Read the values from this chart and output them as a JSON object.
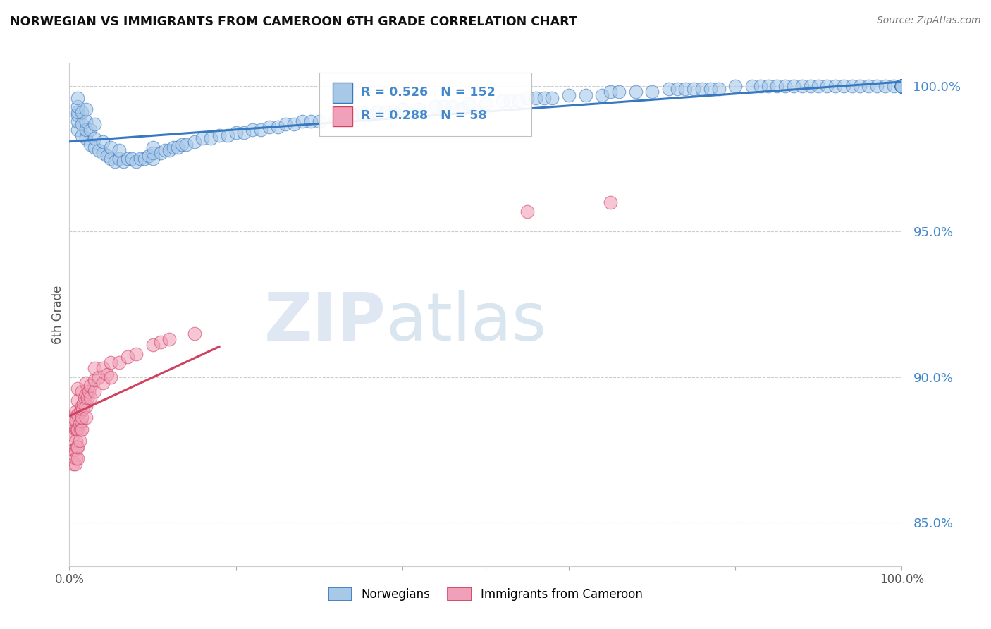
{
  "title": "NORWEGIAN VS IMMIGRANTS FROM CAMEROON 6TH GRADE CORRELATION CHART",
  "source": "Source: ZipAtlas.com",
  "ylabel": "6th Grade",
  "xlim": [
    0.0,
    1.0
  ],
  "ylim": [
    0.835,
    1.008
  ],
  "yticks": [
    0.85,
    0.9,
    0.95,
    1.0
  ],
  "ytick_labels": [
    "85.0%",
    "90.0%",
    "95.0%",
    "100.0%"
  ],
  "legend_norwegians": "Norwegians",
  "legend_immigrants": "Immigrants from Cameroon",
  "r_norwegian": 0.526,
  "n_norwegian": 152,
  "r_immigrant": 0.288,
  "n_immigrant": 58,
  "color_norwegian": "#A8C8E8",
  "color_immigrant": "#F0A0B8",
  "trendline_norwegian": "#3878C0",
  "trendline_immigrant": "#D04060",
  "watermark_zip": "ZIP",
  "watermark_atlas": "atlas",
  "background_color": "#FFFFFF",
  "grid_color": "#CCCCCC",
  "title_color": "#111111",
  "ytick_color": "#4488CC",
  "norwegians_x": [
    0.01,
    0.01,
    0.01,
    0.01,
    0.01,
    0.01,
    0.015,
    0.015,
    0.015,
    0.02,
    0.02,
    0.02,
    0.02,
    0.025,
    0.025,
    0.03,
    0.03,
    0.03,
    0.035,
    0.04,
    0.04,
    0.045,
    0.05,
    0.05,
    0.055,
    0.06,
    0.06,
    0.065,
    0.07,
    0.075,
    0.08,
    0.085,
    0.09,
    0.095,
    0.1,
    0.1,
    0.1,
    0.11,
    0.115,
    0.12,
    0.125,
    0.13,
    0.135,
    0.14,
    0.15,
    0.16,
    0.17,
    0.18,
    0.19,
    0.2,
    0.21,
    0.22,
    0.23,
    0.24,
    0.25,
    0.26,
    0.27,
    0.28,
    0.29,
    0.3,
    0.32,
    0.33,
    0.34,
    0.35,
    0.36,
    0.37,
    0.38,
    0.39,
    0.4,
    0.42,
    0.44,
    0.45,
    0.46,
    0.48,
    0.5,
    0.52,
    0.53,
    0.54,
    0.55,
    0.56,
    0.57,
    0.58,
    0.6,
    0.62,
    0.64,
    0.65,
    0.66,
    0.68,
    0.7,
    0.72,
    0.73,
    0.74,
    0.75,
    0.76,
    0.77,
    0.78,
    0.8,
    0.82,
    0.83,
    0.84,
    0.85,
    0.86,
    0.87,
    0.88,
    0.89,
    0.9,
    0.91,
    0.92,
    0.93,
    0.94,
    0.95,
    0.96,
    0.97,
    0.98,
    0.99,
    1.0,
    1.0,
    1.0,
    1.0,
    1.0,
    1.0,
    1.0,
    1.0,
    1.0,
    1.0,
    1.0,
    1.0,
    1.0,
    1.0,
    1.0,
    1.0,
    1.0,
    1.0,
    1.0,
    1.0,
    1.0,
    1.0,
    1.0,
    1.0,
    1.0,
    1.0,
    1.0,
    1.0,
    1.0,
    1.0,
    1.0,
    1.0,
    1.0,
    1.0,
    0.47,
    0.49
  ],
  "norwegians_y": [
    0.985,
    0.988,
    0.99,
    0.991,
    0.993,
    0.996,
    0.983,
    0.987,
    0.991,
    0.982,
    0.985,
    0.988,
    0.992,
    0.98,
    0.985,
    0.979,
    0.982,
    0.987,
    0.978,
    0.977,
    0.981,
    0.976,
    0.975,
    0.979,
    0.974,
    0.975,
    0.978,
    0.974,
    0.975,
    0.975,
    0.974,
    0.975,
    0.975,
    0.976,
    0.975,
    0.977,
    0.979,
    0.977,
    0.978,
    0.978,
    0.979,
    0.979,
    0.98,
    0.98,
    0.981,
    0.982,
    0.982,
    0.983,
    0.983,
    0.984,
    0.984,
    0.985,
    0.985,
    0.986,
    0.986,
    0.987,
    0.987,
    0.988,
    0.988,
    0.988,
    0.989,
    0.99,
    0.99,
    0.991,
    0.99,
    0.991,
    0.991,
    0.991,
    0.992,
    0.992,
    0.993,
    0.993,
    0.993,
    0.994,
    0.994,
    0.995,
    0.995,
    0.995,
    0.996,
    0.996,
    0.996,
    0.996,
    0.997,
    0.997,
    0.997,
    0.998,
    0.998,
    0.998,
    0.998,
    0.999,
    0.999,
    0.999,
    0.999,
    0.999,
    0.999,
    0.999,
    1.0,
    1.0,
    1.0,
    1.0,
    1.0,
    1.0,
    1.0,
    1.0,
    1.0,
    1.0,
    1.0,
    1.0,
    1.0,
    1.0,
    1.0,
    1.0,
    1.0,
    1.0,
    1.0,
    1.0,
    1.0,
    1.0,
    1.0,
    1.0,
    1.0,
    1.0,
    1.0,
    1.0,
    1.0,
    1.0,
    1.0,
    1.0,
    1.0,
    1.0,
    1.0,
    1.0,
    1.0,
    1.0,
    1.0,
    1.0,
    1.0,
    1.0,
    1.0,
    1.0,
    1.0,
    1.0,
    1.0,
    1.0,
    1.0,
    1.0,
    1.0,
    1.0,
    1.0,
    0.992,
    0.991
  ],
  "immigrants_x": [
    0.005,
    0.005,
    0.005,
    0.005,
    0.005,
    0.007,
    0.007,
    0.007,
    0.007,
    0.008,
    0.008,
    0.008,
    0.009,
    0.009,
    0.01,
    0.01,
    0.01,
    0.01,
    0.01,
    0.01,
    0.012,
    0.012,
    0.013,
    0.013,
    0.014,
    0.015,
    0.015,
    0.015,
    0.015,
    0.016,
    0.017,
    0.018,
    0.02,
    0.02,
    0.02,
    0.02,
    0.022,
    0.023,
    0.025,
    0.025,
    0.03,
    0.03,
    0.03,
    0.035,
    0.04,
    0.04,
    0.045,
    0.05,
    0.05,
    0.06,
    0.07,
    0.08,
    0.1,
    0.11,
    0.12,
    0.55,
    0.65,
    0.15
  ],
  "immigrants_y": [
    0.87,
    0.875,
    0.88,
    0.883,
    0.886,
    0.87,
    0.875,
    0.882,
    0.888,
    0.872,
    0.878,
    0.885,
    0.876,
    0.882,
    0.872,
    0.876,
    0.882,
    0.887,
    0.892,
    0.896,
    0.878,
    0.884,
    0.882,
    0.888,
    0.885,
    0.882,
    0.886,
    0.89,
    0.895,
    0.889,
    0.891,
    0.893,
    0.886,
    0.89,
    0.894,
    0.898,
    0.893,
    0.895,
    0.893,
    0.897,
    0.895,
    0.899,
    0.903,
    0.9,
    0.898,
    0.903,
    0.901,
    0.9,
    0.905,
    0.905,
    0.907,
    0.908,
    0.911,
    0.912,
    0.913,
    0.957,
    0.96,
    0.915
  ],
  "nor_trend_x0": 0.0,
  "nor_trend_x1": 1.0,
  "imm_trend_x0": 0.0,
  "imm_trend_x1": 0.15
}
